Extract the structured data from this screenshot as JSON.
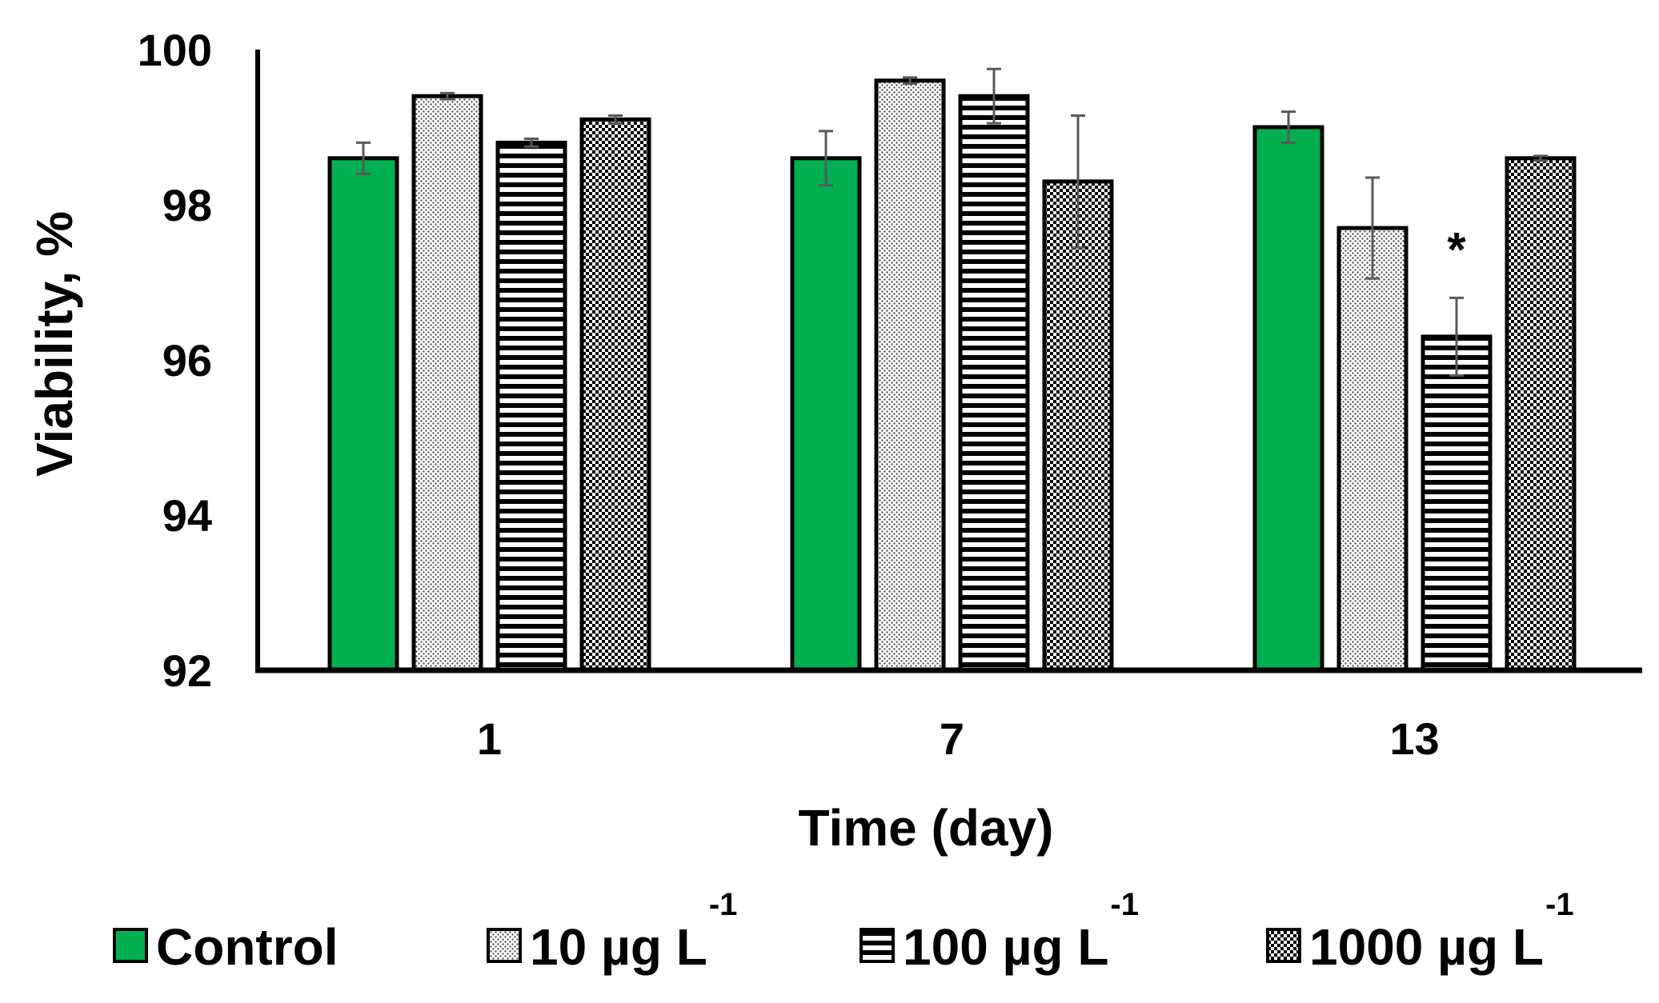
{
  "chart_data": {
    "type": "bar",
    "title": "",
    "xlabel": "Time (day)",
    "ylabel": "Viability, %",
    "ylim": [
      92,
      100
    ],
    "yticks": [
      "92",
      "94",
      "96",
      "98",
      "100"
    ],
    "categories": [
      "1",
      "7",
      "13"
    ],
    "series": [
      {
        "name": "Control",
        "unit": "",
        "pattern": "solid",
        "values": [
          98.6,
          98.6,
          99.0
        ],
        "errors": [
          0.2,
          0.35,
          0.2
        ]
      },
      {
        "name": "10 µg L",
        "unit": "-1",
        "pattern": "dots",
        "values": [
          99.4,
          99.6,
          97.7
        ],
        "errors": [
          0.04,
          0.04,
          0.65
        ]
      },
      {
        "name": "100 µg L",
        "unit": "-1",
        "pattern": "horizontal-lines",
        "values": [
          98.8,
          99.4,
          96.3
        ],
        "errors": [
          0.05,
          0.35,
          0.5
        ]
      },
      {
        "name": "1000 µg L",
        "unit": "-1",
        "pattern": "crosshatch",
        "values": [
          99.1,
          98.3,
          98.6
        ],
        "errors": [
          0.05,
          0.85,
          0.03
        ]
      }
    ],
    "annotations": [
      {
        "text": "*",
        "category": "13",
        "series": "100 µg L"
      }
    ],
    "colors": {
      "control": "#00b050",
      "axis": "#000000",
      "error_bar": "#595959",
      "bar_outline": "#000000"
    },
    "legend_position": "bottom",
    "grid": false
  }
}
